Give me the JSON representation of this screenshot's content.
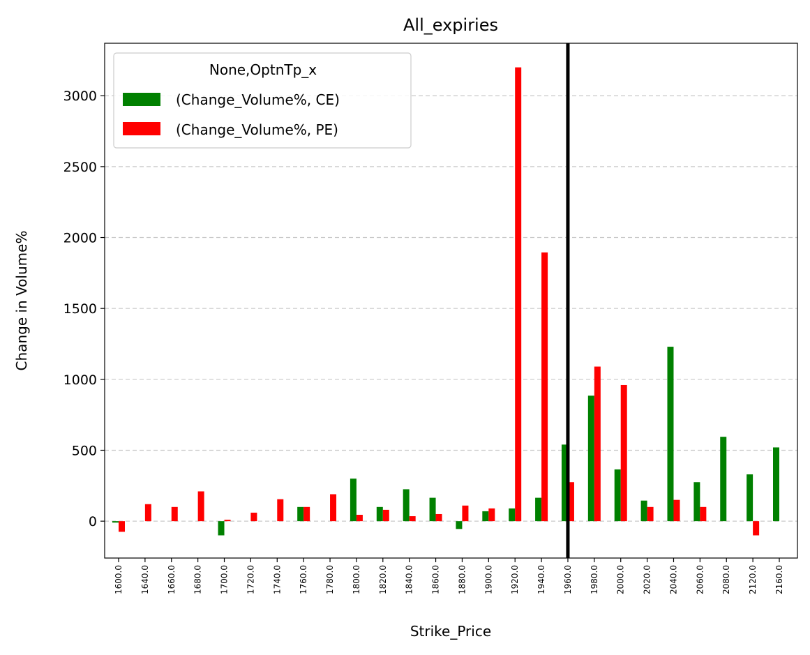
{
  "chart_data": {
    "type": "bar",
    "title": "All_expiries",
    "xlabel": "Strike_Price",
    "ylabel": "Change in Volume%",
    "ylim": [
      -260,
      3370
    ],
    "yticks": [
      0,
      500,
      1000,
      1500,
      2000,
      2500,
      3000
    ],
    "grid": "y-dashed",
    "categories": [
      "1600.0",
      "1640.0",
      "1660.0",
      "1680.0",
      "1700.0",
      "1720.0",
      "1740.0",
      "1760.0",
      "1780.0",
      "1800.0",
      "1820.0",
      "1840.0",
      "1860.0",
      "1880.0",
      "1900.0",
      "1920.0",
      "1940.0",
      "1960.0",
      "1980.0",
      "2000.0",
      "2020.0",
      "2040.0",
      "2060.0",
      "2080.0",
      "2120.0",
      "2160.0"
    ],
    "series": [
      {
        "name": "(Change_Volume%, CE)",
        "color": "#008000",
        "values": [
          -10,
          null,
          null,
          null,
          -100,
          null,
          null,
          100,
          null,
          300,
          100,
          225,
          165,
          -55,
          70,
          90,
          165,
          540,
          885,
          365,
          145,
          1230,
          275,
          595,
          330,
          520
        ]
      },
      {
        "name": "(Change_Volume%, PE)",
        "color": "#ff0000",
        "values": [
          -75,
          120,
          100,
          210,
          10,
          60,
          155,
          100,
          190,
          45,
          80,
          35,
          50,
          110,
          90,
          3200,
          1895,
          275,
          1090,
          960,
          100,
          150,
          100,
          null,
          -100,
          null
        ]
      }
    ],
    "vline": {
      "category": "1960.0",
      "color": "#000000"
    },
    "legend": {
      "title": "None,OptnTp_x",
      "placement": "top-left"
    }
  }
}
